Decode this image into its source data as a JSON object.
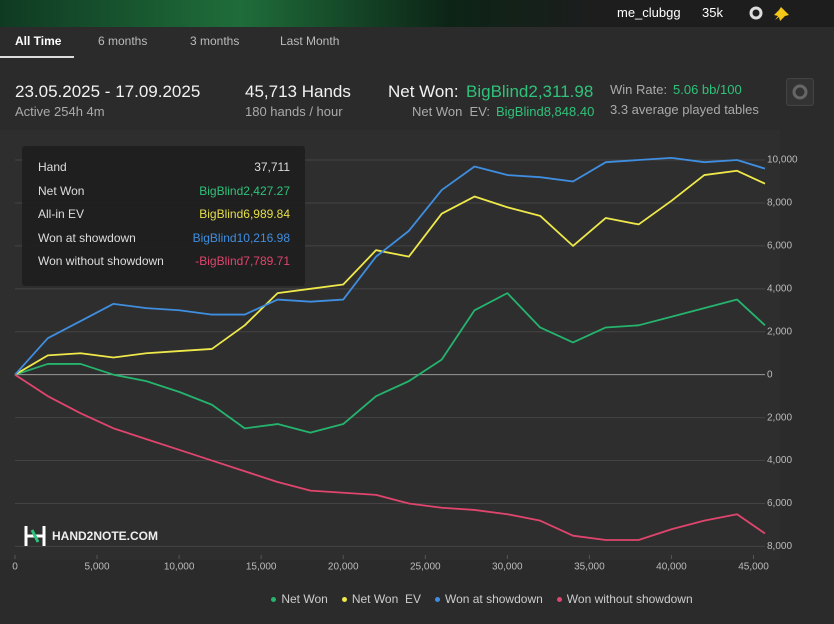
{
  "topbar": {
    "user": "me_clubgg",
    "stack": "35k"
  },
  "tabs": [
    "All Time",
    "6 months",
    "3 months",
    "Last Month"
  ],
  "stats": {
    "period": "23.05.2025 - 17.09.2025",
    "active": "Active 254h 4m",
    "hands": "45,713 Hands",
    "rate": "180 hands / hour",
    "net_won_label": "Net Won:",
    "net_won": "BigBlind2,311.98",
    "net_won_ev_label": "Net Won  EV:",
    "net_won_ev": "BigBlind8,848.40",
    "win_rate_label": "Win Rate:",
    "win_rate": "5.06 bb/100",
    "tables": "3.3 average played tables"
  },
  "tooltip": {
    "rows": [
      {
        "label": "Hand",
        "value": "37,711"
      },
      {
        "label": "Net Won",
        "value": "BigBlind2,427.27"
      },
      {
        "label": "All-in EV",
        "value": "BigBlind6,989.84"
      },
      {
        "label": "Won at showdown",
        "value": "BigBlind10,216.98"
      },
      {
        "label": "Won without showdown",
        "value": "-BigBlind7,789.71"
      }
    ]
  },
  "watermark": "HAND2NOTE.COM",
  "chart_data": {
    "type": "line",
    "x": [
      0,
      2000,
      4000,
      6000,
      8000,
      10000,
      12000,
      14000,
      16000,
      18000,
      20000,
      22000,
      24000,
      26000,
      28000,
      30000,
      32000,
      34000,
      36000,
      38000,
      40000,
      42000,
      44000,
      45700
    ],
    "series": [
      {
        "name": "Net Won",
        "color": "#25b46e",
        "values": [
          0,
          500,
          500,
          0,
          -300,
          -800,
          -1400,
          -2500,
          -2300,
          -2700,
          -2300,
          -1000,
          -300,
          700,
          3000,
          3800,
          2200,
          1500,
          2200,
          2300,
          2700,
          3100,
          3500,
          2300
        ]
      },
      {
        "name": "Net Won  EV",
        "color": "#eee84a",
        "values": [
          0,
          900,
          1000,
          800,
          1000,
          1100,
          1200,
          2300,
          3800,
          4000,
          4200,
          5800,
          5500,
          7500,
          8300,
          7800,
          7400,
          6000,
          7300,
          7000,
          8100,
          9300,
          9500,
          8900
        ]
      },
      {
        "name": "Won at showdown",
        "color": "#3f8ee0",
        "values": [
          0,
          1700,
          2500,
          3300,
          3100,
          3000,
          2800,
          2800,
          3500,
          3400,
          3500,
          5500,
          6700,
          8600,
          9700,
          9300,
          9200,
          9000,
          9900,
          10000,
          10100,
          9900,
          10000,
          9600
        ]
      },
      {
        "name": "Won without showdown",
        "color": "#e0456e",
        "values": [
          0,
          -1000,
          -1800,
          -2500,
          -3000,
          -3500,
          -4000,
          -4500,
          -5000,
          -5400,
          -5500,
          -5600,
          -6000,
          -6200,
          -6300,
          -6500,
          -6800,
          -7500,
          -7700,
          -7700,
          -7200,
          -6800,
          -6500,
          -7400
        ]
      }
    ],
    "xlim": [
      0,
      45700
    ],
    "xticks": [
      0,
      {
        "value": 5000,
        "label": "5,000"
      },
      {
        "value": 10000,
        "label": "10,000"
      },
      {
        "value": 15000,
        "label": "15,000"
      },
      {
        "value": 20000,
        "label": "20,000"
      },
      {
        "value": 25000,
        "label": "25,000"
      },
      {
        "value": 30000,
        "label": "30,000"
      },
      {
        "value": 35000,
        "label": "35,000"
      },
      {
        "value": 40000,
        "label": "40,000"
      },
      {
        "value": 45000,
        "label": "45,000"
      }
    ],
    "ylim": [
      -8400,
      10700
    ],
    "yticks": [
      {
        "value": 10000,
        "label": "10,000"
      },
      {
        "value": 8000,
        "label": "8,000"
      },
      {
        "value": 6000,
        "label": "6,000"
      },
      {
        "value": 4000,
        "label": "4,000"
      },
      {
        "value": 2000,
        "label": "2,000"
      },
      0,
      {
        "value": -2000,
        "label": "2,000"
      },
      {
        "value": -4000,
        "label": "4,000"
      },
      {
        "value": -6000,
        "label": "6,000"
      },
      {
        "value": -8000,
        "label": "8,000"
      }
    ],
    "grid": true,
    "legend": "bottom"
  }
}
